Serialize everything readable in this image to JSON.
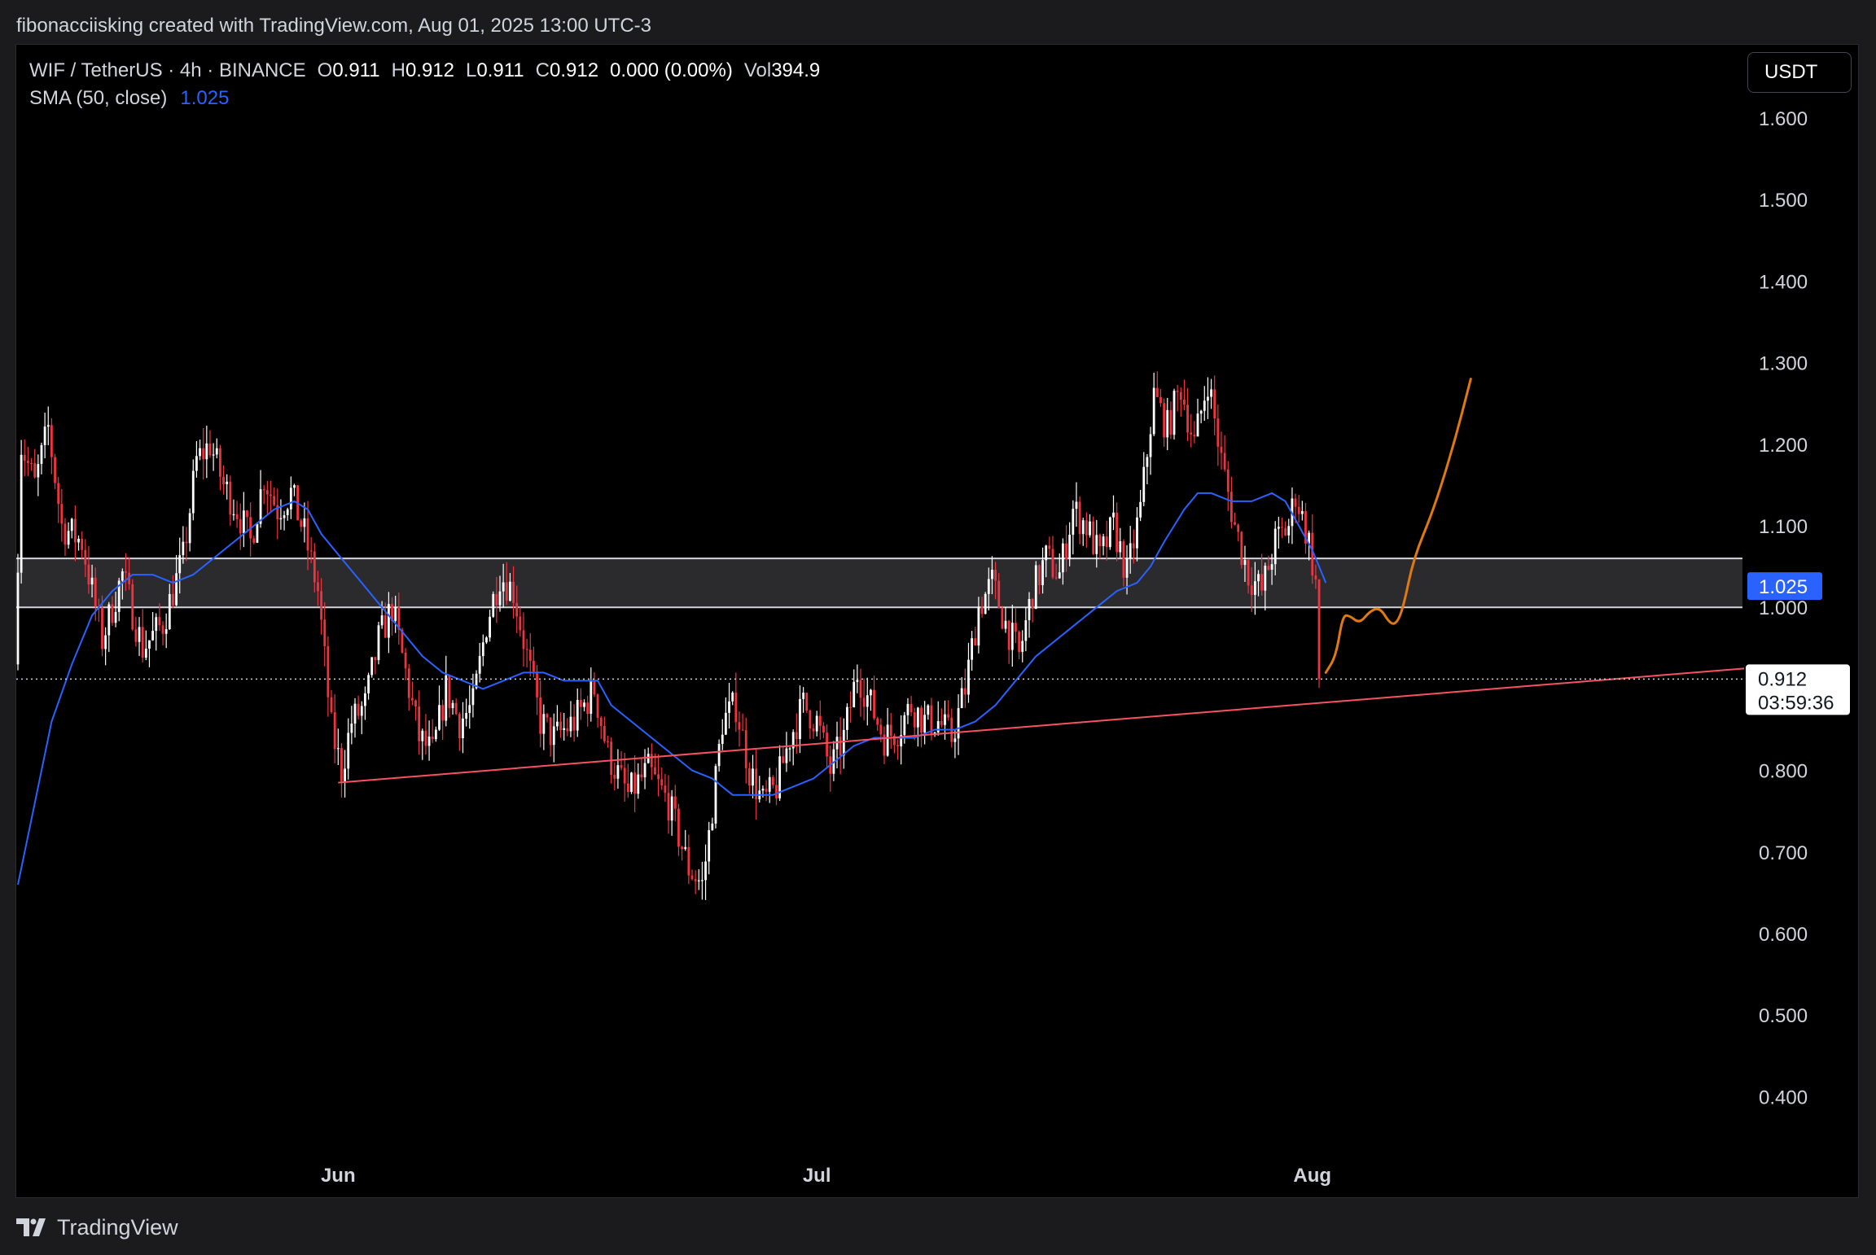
{
  "header": {
    "attribution": "fibonacciisking created with TradingView.com, Aug 01, 2025 13:00 UTC-3"
  },
  "legend": {
    "symbol": "WIF / TetherUS · 4h · BINANCE",
    "open_label": "O",
    "open": "0.911",
    "high_label": "H",
    "high": "0.912",
    "low_label": "L",
    "low": "0.911",
    "close_label": "C",
    "close": "0.912",
    "change": "0.000 (0.00%)",
    "vol_label": "Vol",
    "vol": "394.9",
    "sma_label": "SMA (50, close)",
    "sma_value": "1.025"
  },
  "toolbar": {
    "currency": "USDT"
  },
  "footer": {
    "brand": "TradingView"
  },
  "colors": {
    "background": "#000000",
    "candle_up": "#ffffff",
    "candle_down": "#ef3340",
    "sma": "#2962ff",
    "trendline": "#f7525f",
    "projection": "#e07a10",
    "zone": "#3a3a3e",
    "price_tag_sma": "#2962ff"
  },
  "chart_data": {
    "type": "candlestick",
    "symbol": "WIF/USDT",
    "interval": "4h",
    "ylim": [
      0.35,
      1.65
    ],
    "y_ticks": [
      1.6,
      1.5,
      1.4,
      1.3,
      1.2,
      1.1,
      1.0,
      0.8,
      0.7,
      0.6,
      0.5,
      0.4
    ],
    "y_tick_labels": [
      "1.600",
      "1.500",
      "1.400",
      "1.300",
      "1.200",
      "1.100",
      "1.000",
      "0.800",
      "0.700",
      "0.600",
      "0.500",
      "0.400"
    ],
    "x_ticks": [
      {
        "label": "Jun",
        "index": 95
      },
      {
        "label": "Jul",
        "index": 237
      },
      {
        "label": "Aug",
        "index": 384
      }
    ],
    "x_range": [
      0,
      516
    ],
    "candles_count": 387,
    "price_anchors": [
      [
        0,
        0.93
      ],
      [
        2,
        1.2
      ],
      [
        6,
        1.15
      ],
      [
        10,
        1.22
      ],
      [
        14,
        1.1
      ],
      [
        20,
        1.08
      ],
      [
        26,
        0.96
      ],
      [
        32,
        1.04
      ],
      [
        38,
        0.95
      ],
      [
        44,
        0.98
      ],
      [
        50,
        1.06
      ],
      [
        54,
        1.18
      ],
      [
        58,
        1.2
      ],
      [
        62,
        1.15
      ],
      [
        66,
        1.12
      ],
      [
        70,
        1.08
      ],
      [
        74,
        1.16
      ],
      [
        78,
        1.12
      ],
      [
        82,
        1.14
      ],
      [
        86,
        1.09
      ],
      [
        90,
        1.02
      ],
      [
        94,
        0.85
      ],
      [
        97,
        0.8
      ],
      [
        100,
        0.86
      ],
      [
        104,
        0.88
      ],
      [
        108,
        0.96
      ],
      [
        112,
        1.0
      ],
      [
        116,
        0.92
      ],
      [
        120,
        0.84
      ],
      [
        124,
        0.82
      ],
      [
        128,
        0.9
      ],
      [
        132,
        0.86
      ],
      [
        136,
        0.88
      ],
      [
        140,
        0.98
      ],
      [
        144,
        1.04
      ],
      [
        148,
        1.02
      ],
      [
        152,
        0.94
      ],
      [
        156,
        0.86
      ],
      [
        160,
        0.84
      ],
      [
        166,
        0.86
      ],
      [
        172,
        0.9
      ],
      [
        176,
        0.82
      ],
      [
        182,
        0.77
      ],
      [
        188,
        0.8
      ],
      [
        194,
        0.76
      ],
      [
        200,
        0.68
      ],
      [
        204,
        0.66
      ],
      [
        206,
        0.72
      ],
      [
        210,
        0.86
      ],
      [
        214,
        0.88
      ],
      [
        218,
        0.8
      ],
      [
        222,
        0.76
      ],
      [
        226,
        0.78
      ],
      [
        230,
        0.84
      ],
      [
        234,
        0.88
      ],
      [
        238,
        0.86
      ],
      [
        242,
        0.8
      ],
      [
        246,
        0.84
      ],
      [
        250,
        0.92
      ],
      [
        254,
        0.88
      ],
      [
        258,
        0.84
      ],
      [
        262,
        0.85
      ],
      [
        266,
        0.88
      ],
      [
        270,
        0.86
      ],
      [
        274,
        0.86
      ],
      [
        278,
        0.84
      ],
      [
        282,
        0.9
      ],
      [
        286,
        1.0
      ],
      [
        290,
        1.03
      ],
      [
        294,
        0.98
      ],
      [
        298,
        0.94
      ],
      [
        302,
        1.02
      ],
      [
        306,
        1.06
      ],
      [
        310,
        1.04
      ],
      [
        314,
        1.12
      ],
      [
        318,
        1.1
      ],
      [
        322,
        1.06
      ],
      [
        326,
        1.1
      ],
      [
        330,
        1.04
      ],
      [
        334,
        1.12
      ],
      [
        338,
        1.26
      ],
      [
        342,
        1.22
      ],
      [
        346,
        1.27
      ],
      [
        350,
        1.2
      ],
      [
        354,
        1.28
      ],
      [
        358,
        1.18
      ],
      [
        362,
        1.1
      ],
      [
        366,
        1.04
      ],
      [
        370,
        1.02
      ],
      [
        374,
        1.08
      ],
      [
        378,
        1.1
      ],
      [
        380,
        1.14
      ],
      [
        384,
        1.08
      ],
      [
        388,
        0.98
      ]
    ],
    "sma": {
      "name": "SMA (50, close)",
      "last": 1.025,
      "points": [
        [
          0,
          0.66
        ],
        [
          4,
          0.74
        ],
        [
          10,
          0.86
        ],
        [
          16,
          0.93
        ],
        [
          22,
          0.99
        ],
        [
          28,
          1.02
        ],
        [
          34,
          1.04
        ],
        [
          40,
          1.04
        ],
        [
          46,
          1.03
        ],
        [
          52,
          1.04
        ],
        [
          58,
          1.06
        ],
        [
          64,
          1.08
        ],
        [
          70,
          1.1
        ],
        [
          76,
          1.12
        ],
        [
          82,
          1.13
        ],
        [
          86,
          1.12
        ],
        [
          90,
          1.09
        ],
        [
          96,
          1.06
        ],
        [
          102,
          1.03
        ],
        [
          108,
          1.0
        ],
        [
          114,
          0.97
        ],
        [
          120,
          0.94
        ],
        [
          126,
          0.92
        ],
        [
          132,
          0.91
        ],
        [
          138,
          0.9
        ],
        [
          144,
          0.91
        ],
        [
          150,
          0.92
        ],
        [
          156,
          0.92
        ],
        [
          162,
          0.91
        ],
        [
          168,
          0.91
        ],
        [
          172,
          0.91
        ],
        [
          176,
          0.88
        ],
        [
          182,
          0.86
        ],
        [
          188,
          0.84
        ],
        [
          194,
          0.82
        ],
        [
          200,
          0.8
        ],
        [
          206,
          0.79
        ],
        [
          212,
          0.77
        ],
        [
          218,
          0.77
        ],
        [
          224,
          0.77
        ],
        [
          230,
          0.78
        ],
        [
          236,
          0.79
        ],
        [
          242,
          0.81
        ],
        [
          248,
          0.83
        ],
        [
          254,
          0.84
        ],
        [
          260,
          0.84
        ],
        [
          266,
          0.84
        ],
        [
          272,
          0.85
        ],
        [
          278,
          0.85
        ],
        [
          284,
          0.86
        ],
        [
          290,
          0.88
        ],
        [
          296,
          0.91
        ],
        [
          302,
          0.94
        ],
        [
          308,
          0.96
        ],
        [
          314,
          0.98
        ],
        [
          320,
          1.0
        ],
        [
          326,
          1.02
        ],
        [
          332,
          1.03
        ],
        [
          336,
          1.05
        ],
        [
          340,
          1.08
        ],
        [
          346,
          1.12
        ],
        [
          350,
          1.14
        ],
        [
          354,
          1.14
        ],
        [
          360,
          1.13
        ],
        [
          366,
          1.13
        ],
        [
          372,
          1.14
        ],
        [
          376,
          1.13
        ],
        [
          380,
          1.1
        ],
        [
          384,
          1.07
        ],
        [
          388,
          1.03
        ]
      ]
    },
    "resistance_zone": {
      "top": 1.06,
      "bottom": 1.0
    },
    "trendline": {
      "from": [
        95,
        0.785
      ],
      "to": [
        516,
        0.925
      ]
    },
    "last_price": {
      "value": "0.912",
      "countdown": "03:59:36",
      "numeric": 0.912
    },
    "projection_path": [
      [
        388,
        0.92
      ],
      [
        391,
        0.94
      ],
      [
        393,
        0.99
      ],
      [
        395,
        0.99
      ],
      [
        398,
        0.98
      ],
      [
        401,
        0.995
      ],
      [
        404,
        1.0
      ],
      [
        407,
        0.98
      ],
      [
        409,
        0.98
      ],
      [
        411,
        1.0
      ],
      [
        414,
        1.06
      ],
      [
        420,
        1.12
      ],
      [
        426,
        1.2
      ],
      [
        431,
        1.28
      ]
    ]
  }
}
